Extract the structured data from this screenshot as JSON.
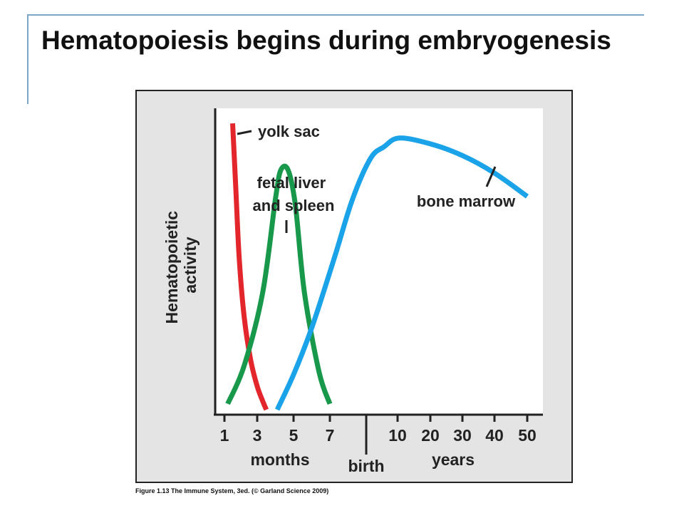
{
  "slide": {
    "title": "Hematopoiesis begins during embryogenesis",
    "caption": "Figure 1.13 The Immune System, 3ed. (© Garland Science 2009)"
  },
  "colors": {
    "frame": "#7aa6c8",
    "yolk_sac": "#e3262b",
    "fetal_liver": "#18984a",
    "bone_marrow": "#1aa3e8",
    "panel": "#e4e4e4"
  },
  "chart_data": {
    "type": "line",
    "title": "",
    "ylabel_lines": [
      "Hematopoietic",
      "activity"
    ],
    "x_tick_labels": [
      "1",
      "3",
      "5",
      "7",
      "10",
      "20",
      "30",
      "40",
      "50"
    ],
    "x_group_labels": {
      "months": "months",
      "birth": "birth",
      "years": "years"
    },
    "series": [
      {
        "name": "yolk sac",
        "label_lines": [
          "yolk sac"
        ],
        "color": "#e3262b",
        "x": [
          1.5,
          1.7,
          1.9,
          2.2,
          2.6,
          3.0,
          3.3,
          3.5
        ],
        "y": [
          0.98,
          0.75,
          0.52,
          0.32,
          0.17,
          0.08,
          0.03,
          0.0
        ]
      },
      {
        "name": "fetal liver and spleen",
        "label_lines": [
          "fetal liver",
          "and spleen"
        ],
        "color": "#18984a",
        "x": [
          1.2,
          2.2,
          3.3,
          4.0,
          4.3,
          4.7,
          5.1,
          5.6,
          6.4,
          7.0
        ],
        "y": [
          0.02,
          0.15,
          0.4,
          0.72,
          0.82,
          0.82,
          0.7,
          0.4,
          0.13,
          0.02
        ]
      },
      {
        "name": "bone marrow",
        "label_lines": [
          "bone marrow"
        ],
        "color": "#1aa3e8",
        "x": [
          4.1,
          5.0,
          6.0,
          7.2,
          8.0,
          8.8,
          9.4,
          10.5,
          20,
          30,
          40,
          50
        ],
        "y": [
          0.0,
          0.12,
          0.28,
          0.52,
          0.72,
          0.86,
          0.9,
          0.93,
          0.91,
          0.87,
          0.81,
          0.73
        ]
      }
    ]
  }
}
